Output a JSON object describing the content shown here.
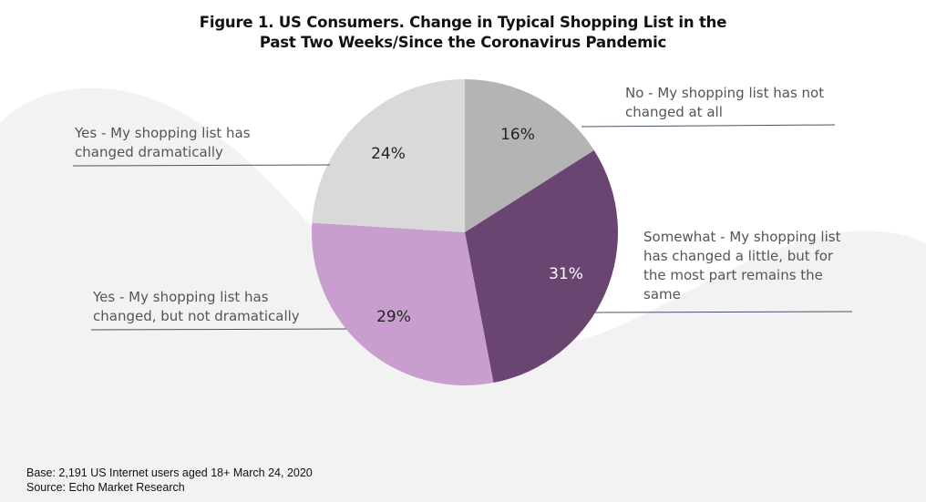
{
  "chart_data": {
    "type": "pie",
    "title": "Figure 1. US Consumers. Change in Typical Shopping List in the Past Two Weeks/Since the Coronavirus Pandemic",
    "title_lines": [
      "Figure 1. US Consumers. Change in Typical Shopping List in the",
      "Past Two Weeks/Since the Coronavirus Pandemic"
    ],
    "unit": "%",
    "slices": [
      {
        "label": "No - My shopping list has not changed at all",
        "label_lines": [
          "No - My shopping list has not",
          "changed at all"
        ],
        "value": 16,
        "value_label": "16%",
        "color": "#b4b4b4"
      },
      {
        "label": "Somewhat - My shopping list has changed a little, but for the most part remains the same",
        "label_lines": [
          "Somewhat - My shopping list",
          "has changed a little, but for",
          "the most part remains the",
          "same"
        ],
        "value": 31,
        "value_label": "31%",
        "color": "#6b4572"
      },
      {
        "label": "Yes - My shopping list has changed, but not dramatically",
        "label_lines": [
          "Yes - My shopping list has",
          "changed, but not dramatically"
        ],
        "value": 29,
        "value_label": "29%",
        "color": "#c89ecf"
      },
      {
        "label": "Yes - My shopping list has changed dramatically",
        "label_lines": [
          "Yes - My shopping list has",
          "changed dramatically"
        ],
        "value": 24,
        "value_label": "24%",
        "color": "#d9d9d9"
      }
    ],
    "start_angle": "12 o'clock",
    "direction": "clockwise",
    "legend": "none (callout labels)"
  },
  "footer": {
    "base": "Base: 2,191 US Internet users aged 18+  March 24, 2020",
    "source": "Source: Echo Market Research"
  },
  "colors": {
    "background_shape": "#f2f2f2",
    "leader_line": "#44546a"
  }
}
